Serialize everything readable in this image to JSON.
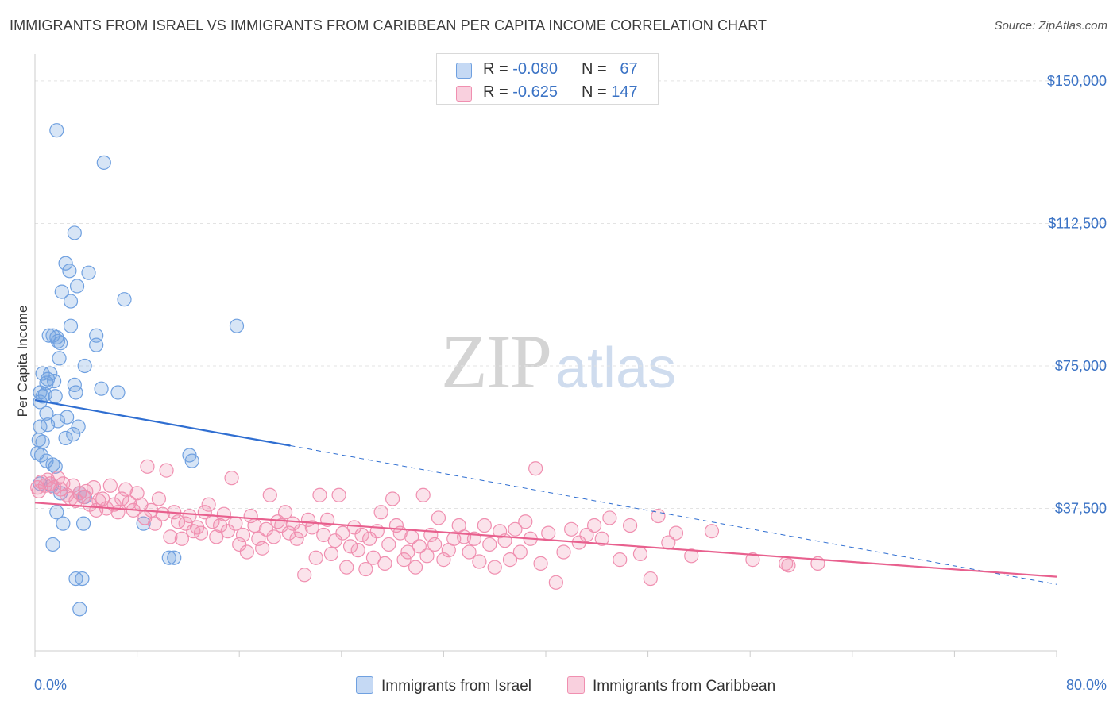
{
  "title": "IMMIGRANTS FROM ISRAEL VS IMMIGRANTS FROM CARIBBEAN PER CAPITA INCOME CORRELATION CHART",
  "source": "Source: ZipAtlas.com",
  "watermark": {
    "zip": "ZIP",
    "atlas": "atlas"
  },
  "legend_top": [
    {
      "r_label": "R = ",
      "r_value": "-0.080",
      "n_label": "N = ",
      "n_value": "67",
      "color": "#6fa0e0"
    },
    {
      "r_label": "R = ",
      "r_value": "-0.625",
      "n_label": "N = ",
      "n_value": "147",
      "color": "#f08fb0"
    }
  ],
  "chart_data": {
    "type": "scatter",
    "title": "IMMIGRANTS FROM ISRAEL VS IMMIGRANTS FROM CARIBBEAN PER CAPITA INCOME CORRELATION CHART",
    "xlabel": "",
    "ylabel": "Per Capita Income",
    "xlim": [
      0,
      80
    ],
    "ylim": [
      0,
      155000
    ],
    "x_tick_labels": [
      "0.0%",
      "80.0%"
    ],
    "y_ticks": [
      37500,
      75000,
      112500,
      150000
    ],
    "y_tick_labels": [
      "$37,500",
      "$75,000",
      "$112,500",
      "$150,000"
    ],
    "grid": "horizontal dashed",
    "legend_placement": "bottom-center",
    "series": [
      {
        "name": "Immigrants from Israel",
        "color": "#6fa0e0",
        "line_color": "#2f6ed1",
        "trend": {
          "x0": 0,
          "y0": 66000,
          "x1": 20,
          "y1": 54000,
          "x_end": 80,
          "y_end": 17500
        },
        "points": [
          [
            1.7,
            137000
          ],
          [
            5.4,
            128500
          ],
          [
            3.1,
            110000
          ],
          [
            2.4,
            102000
          ],
          [
            2.7,
            100000
          ],
          [
            4.2,
            99500
          ],
          [
            3.3,
            96000
          ],
          [
            2.1,
            94500
          ],
          [
            2.8,
            92000
          ],
          [
            7.0,
            92500
          ],
          [
            2.8,
            85500
          ],
          [
            15.8,
            85500
          ],
          [
            1.1,
            83000
          ],
          [
            1.4,
            83000
          ],
          [
            1.7,
            82500
          ],
          [
            4.8,
            83000
          ],
          [
            1.8,
            81500
          ],
          [
            2.0,
            81000
          ],
          [
            4.8,
            80500
          ],
          [
            1.9,
            77000
          ],
          [
            3.9,
            75000
          ],
          [
            0.6,
            73000
          ],
          [
            1.2,
            73000
          ],
          [
            1.0,
            71500
          ],
          [
            1.5,
            71000
          ],
          [
            0.9,
            70500
          ],
          [
            3.1,
            70000
          ],
          [
            5.2,
            69000
          ],
          [
            0.4,
            68000
          ],
          [
            0.8,
            67500
          ],
          [
            3.2,
            68000
          ],
          [
            6.5,
            68000
          ],
          [
            0.6,
            67000
          ],
          [
            1.6,
            67000
          ],
          [
            0.4,
            65500
          ],
          [
            2.5,
            61500
          ],
          [
            0.9,
            62500
          ],
          [
            1.8,
            60500
          ],
          [
            1.0,
            59500
          ],
          [
            3.4,
            59000
          ],
          [
            0.4,
            59000
          ],
          [
            3.0,
            57000
          ],
          [
            2.4,
            56000
          ],
          [
            0.3,
            55500
          ],
          [
            0.6,
            55000
          ],
          [
            0.2,
            52000
          ],
          [
            0.5,
            51500
          ],
          [
            12.1,
            51500
          ],
          [
            12.3,
            50000
          ],
          [
            0.9,
            50000
          ],
          [
            1.4,
            49000
          ],
          [
            1.6,
            48500
          ],
          [
            0.4,
            44000
          ],
          [
            1.3,
            43500
          ],
          [
            2.0,
            41500
          ],
          [
            3.5,
            41500
          ],
          [
            3.9,
            40500
          ],
          [
            1.7,
            36500
          ],
          [
            2.2,
            33500
          ],
          [
            3.8,
            33500
          ],
          [
            8.5,
            33500
          ],
          [
            1.4,
            28000
          ],
          [
            10.5,
            24500
          ],
          [
            10.9,
            24500
          ],
          [
            3.2,
            19000
          ],
          [
            3.7,
            19000
          ],
          [
            3.5,
            11000
          ]
        ]
      },
      {
        "name": "Immigrants from Caribbean",
        "color": "#f08fb0",
        "line_color": "#e8608e",
        "trend": {
          "x0": 0,
          "y0": 39000,
          "x1": 80,
          "y1": 19500
        },
        "points": [
          [
            0.2,
            43000
          ],
          [
            0.3,
            42000
          ],
          [
            0.5,
            44500
          ],
          [
            0.8,
            43500
          ],
          [
            1.0,
            45000
          ],
          [
            1.2,
            44000
          ],
          [
            1.5,
            43000
          ],
          [
            1.8,
            45500
          ],
          [
            2.0,
            42500
          ],
          [
            2.2,
            44000
          ],
          [
            2.5,
            41000
          ],
          [
            2.8,
            40000
          ],
          [
            3.0,
            43500
          ],
          [
            3.2,
            39500
          ],
          [
            3.5,
            41500
          ],
          [
            3.8,
            40500
          ],
          [
            4.0,
            42000
          ],
          [
            4.3,
            38500
          ],
          [
            4.6,
            43000
          ],
          [
            4.8,
            37000
          ],
          [
            5.0,
            39500
          ],
          [
            5.3,
            40000
          ],
          [
            5.6,
            37500
          ],
          [
            5.9,
            43500
          ],
          [
            6.2,
            38500
          ],
          [
            6.5,
            36500
          ],
          [
            6.8,
            40000
          ],
          [
            7.1,
            42500
          ],
          [
            7.4,
            39000
          ],
          [
            7.7,
            37000
          ],
          [
            8.0,
            41500
          ],
          [
            8.3,
            38500
          ],
          [
            8.6,
            35000
          ],
          [
            8.8,
            48500
          ],
          [
            9.1,
            37000
          ],
          [
            9.4,
            33500
          ],
          [
            9.7,
            40000
          ],
          [
            10.0,
            36000
          ],
          [
            10.3,
            47500
          ],
          [
            10.6,
            30000
          ],
          [
            10.9,
            36500
          ],
          [
            11.2,
            34000
          ],
          [
            11.5,
            29500
          ],
          [
            11.8,
            33500
          ],
          [
            12.1,
            35500
          ],
          [
            12.4,
            31500
          ],
          [
            12.7,
            32500
          ],
          [
            13.0,
            31000
          ],
          [
            13.3,
            36500
          ],
          [
            13.6,
            38500
          ],
          [
            13.9,
            34000
          ],
          [
            14.2,
            30000
          ],
          [
            14.5,
            33000
          ],
          [
            14.8,
            36000
          ],
          [
            15.1,
            31500
          ],
          [
            15.4,
            45500
          ],
          [
            15.7,
            33500
          ],
          [
            16.0,
            28000
          ],
          [
            16.3,
            30500
          ],
          [
            16.6,
            26000
          ],
          [
            16.9,
            35500
          ],
          [
            17.2,
            33000
          ],
          [
            17.5,
            29500
          ],
          [
            17.8,
            27000
          ],
          [
            18.1,
            32000
          ],
          [
            18.4,
            41000
          ],
          [
            18.7,
            30000
          ],
          [
            19.0,
            34000
          ],
          [
            19.3,
            33000
          ],
          [
            19.6,
            36500
          ],
          [
            19.9,
            31000
          ],
          [
            20.2,
            33500
          ],
          [
            20.5,
            29500
          ],
          [
            20.8,
            31500
          ],
          [
            21.1,
            20000
          ],
          [
            21.4,
            34500
          ],
          [
            21.7,
            32500
          ],
          [
            22.0,
            24500
          ],
          [
            22.3,
            41000
          ],
          [
            22.6,
            30500
          ],
          [
            22.9,
            34500
          ],
          [
            23.2,
            25500
          ],
          [
            23.5,
            29000
          ],
          [
            23.8,
            41000
          ],
          [
            24.1,
            31000
          ],
          [
            24.4,
            22000
          ],
          [
            24.7,
            27500
          ],
          [
            25.0,
            32500
          ],
          [
            25.3,
            26500
          ],
          [
            25.6,
            30500
          ],
          [
            25.9,
            21500
          ],
          [
            26.2,
            29500
          ],
          [
            26.5,
            24500
          ],
          [
            26.8,
            31500
          ],
          [
            27.1,
            36500
          ],
          [
            27.4,
            23000
          ],
          [
            27.7,
            28000
          ],
          [
            28.0,
            40000
          ],
          [
            28.3,
            33000
          ],
          [
            28.6,
            31000
          ],
          [
            28.9,
            24000
          ],
          [
            29.2,
            26000
          ],
          [
            29.5,
            30000
          ],
          [
            29.8,
            22000
          ],
          [
            30.1,
            27500
          ],
          [
            30.4,
            41000
          ],
          [
            30.7,
            25000
          ],
          [
            31.0,
            30500
          ],
          [
            31.3,
            28000
          ],
          [
            31.6,
            35000
          ],
          [
            32.0,
            24000
          ],
          [
            32.4,
            26500
          ],
          [
            32.8,
            29500
          ],
          [
            33.2,
            33000
          ],
          [
            33.6,
            30000
          ],
          [
            34.0,
            26000
          ],
          [
            34.4,
            29500
          ],
          [
            34.8,
            23500
          ],
          [
            35.2,
            33000
          ],
          [
            35.6,
            28000
          ],
          [
            36.0,
            22000
          ],
          [
            36.4,
            31500
          ],
          [
            36.8,
            29000
          ],
          [
            37.2,
            24000
          ],
          [
            37.6,
            32000
          ],
          [
            38.0,
            26000
          ],
          [
            38.4,
            34000
          ],
          [
            38.8,
            29500
          ],
          [
            39.2,
            48000
          ],
          [
            39.6,
            23000
          ],
          [
            40.2,
            31000
          ],
          [
            40.8,
            18000
          ],
          [
            41.4,
            26000
          ],
          [
            42.0,
            32000
          ],
          [
            42.6,
            28500
          ],
          [
            43.2,
            30500
          ],
          [
            43.8,
            33000
          ],
          [
            44.4,
            29500
          ],
          [
            45.0,
            35000
          ],
          [
            45.8,
            24000
          ],
          [
            46.6,
            33000
          ],
          [
            47.4,
            25500
          ],
          [
            48.2,
            19000
          ],
          [
            48.8,
            35500
          ],
          [
            49.6,
            28500
          ],
          [
            50.2,
            31000
          ],
          [
            51.4,
            25000
          ],
          [
            53.0,
            31500
          ],
          [
            56.2,
            24000
          ],
          [
            58.8,
            23000
          ],
          [
            59.0,
            22500
          ],
          [
            61.3,
            23000
          ]
        ]
      }
    ]
  }
}
